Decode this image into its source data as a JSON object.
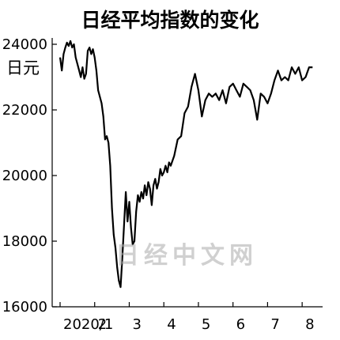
{
  "title": "日经平均指数的变化",
  "watermark": "日经中文网",
  "colors": {
    "line": "#000000",
    "axis": "#000000",
    "background": "#ffffff"
  },
  "chart_data": {
    "type": "line",
    "title": "日经平均指数的变化",
    "ylabel": "日元",
    "xlabel": "",
    "ylim": [
      16000,
      24000
    ],
    "yticks": [
      16000,
      18000,
      20000,
      22000,
      24000
    ],
    "xlim": [
      1,
      8.5
    ],
    "xticks": [
      {
        "x": 1,
        "label": "2020/1"
      },
      {
        "x": 2,
        "label": "2"
      },
      {
        "x": 3,
        "label": "3"
      },
      {
        "x": 4,
        "label": "4"
      },
      {
        "x": 5,
        "label": "5"
      },
      {
        "x": 6,
        "label": "6"
      },
      {
        "x": 7,
        "label": "7"
      },
      {
        "x": 8,
        "label": "8"
      }
    ],
    "grid": false,
    "legend": "none",
    "series": [
      {
        "x": [
          1.0,
          1.05,
          1.1,
          1.15,
          1.2,
          1.25,
          1.3,
          1.35,
          1.4,
          1.45,
          1.5,
          1.55,
          1.6,
          1.65,
          1.7,
          1.75,
          1.8,
          1.85,
          1.9,
          1.95,
          2.0,
          2.05,
          2.1,
          2.15,
          2.2,
          2.25,
          2.3,
          2.35,
          2.4,
          2.45,
          2.5,
          2.55,
          2.6,
          2.65,
          2.7,
          2.75,
          2.8,
          2.85,
          2.9,
          2.95,
          3.0,
          3.05,
          3.1,
          3.15,
          3.2,
          3.25,
          3.3,
          3.35,
          3.4,
          3.45,
          3.5,
          3.55,
          3.6,
          3.65,
          3.7,
          3.75,
          3.8,
          3.85,
          3.9,
          3.95,
          4.0,
          4.05,
          4.1,
          4.15,
          4.2,
          4.3,
          4.4,
          4.5,
          4.6,
          4.7,
          4.8,
          4.9,
          5.0,
          5.1,
          5.2,
          5.3,
          5.4,
          5.5,
          5.6,
          5.7,
          5.8,
          5.9,
          6.0,
          6.1,
          6.2,
          6.3,
          6.4,
          6.5,
          6.6,
          6.7,
          6.8,
          6.9,
          7.0,
          7.1,
          7.2,
          7.3,
          7.4,
          7.5,
          7.6,
          7.7,
          7.8,
          7.9,
          8.0,
          8.1,
          8.2,
          8.3
        ],
        "y": [
          23600,
          23200,
          23700,
          23900,
          24050,
          23950,
          24100,
          23900,
          24000,
          23600,
          23400,
          23200,
          23000,
          23300,
          22950,
          23100,
          23800,
          23900,
          23700,
          23850,
          23600,
          23200,
          22600,
          22400,
          22200,
          21800,
          21100,
          21200,
          21000,
          20300,
          19000,
          18200,
          17800,
          17200,
          16800,
          16600,
          17500,
          18500,
          19500,
          18600,
          19200,
          18400,
          17900,
          18000,
          18900,
          19400,
          19200,
          19500,
          19300,
          19700,
          19400,
          19800,
          19600,
          19100,
          19700,
          19900,
          19600,
          19800,
          20200,
          20000,
          20100,
          20300,
          20100,
          20400,
          20300,
          20600,
          21100,
          21200,
          21900,
          22100,
          22700,
          23100,
          22600,
          21800,
          22300,
          22500,
          22400,
          22500,
          22300,
          22600,
          22200,
          22700,
          22800,
          22600,
          22400,
          22800,
          22700,
          22600,
          22300,
          21700,
          22500,
          22400,
          22200,
          22500,
          22900,
          23200,
          22900,
          23000,
          22900,
          23300,
          23100,
          23300,
          22900,
          23000,
          23300,
          23300
        ]
      }
    ]
  }
}
